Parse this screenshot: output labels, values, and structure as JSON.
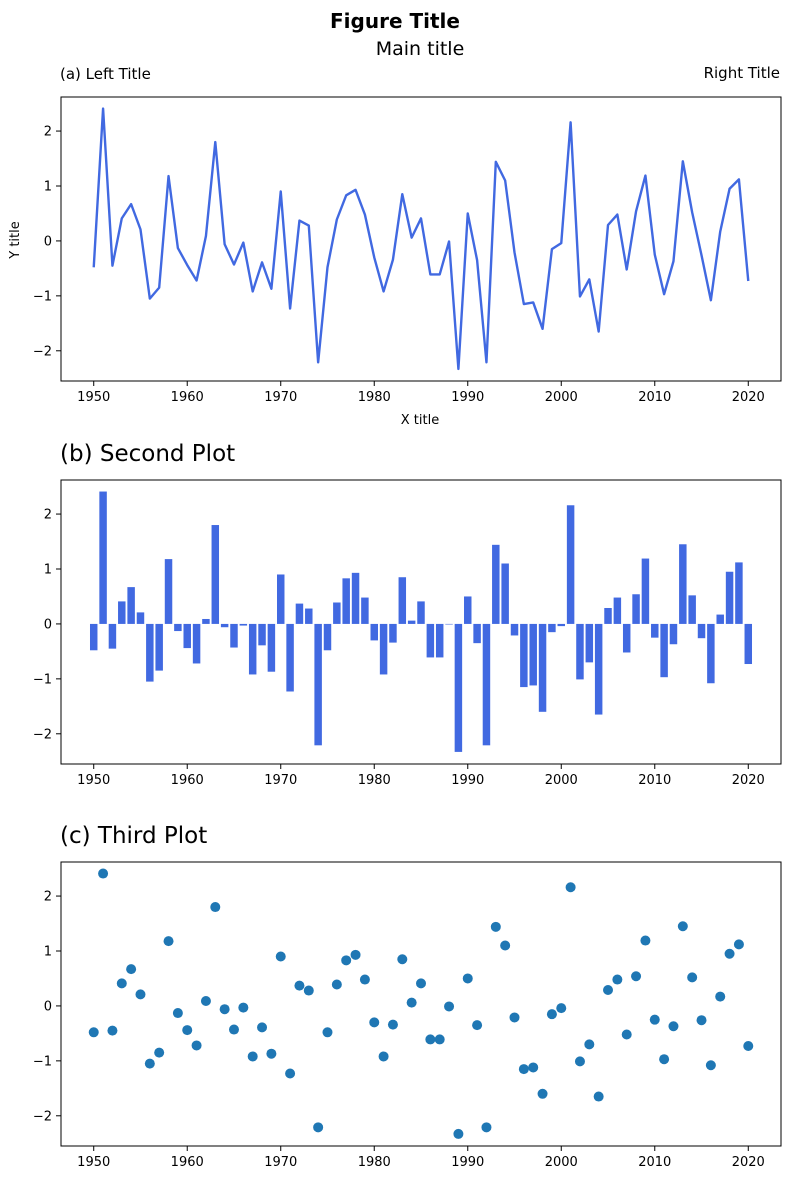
{
  "figure_title": "Figure Title",
  "colors": {
    "line": "#4169e1",
    "bar": "#4169e1",
    "scatter": "#1f77b4"
  },
  "chart_data": [
    {
      "type": "line",
      "title_center": "Main title",
      "title_left": "(a) Left Title",
      "title_right": "Right Title",
      "xlabel": "X title",
      "ylabel": "Y title",
      "xlim": [
        1946.5,
        2023.5
      ],
      "ylim": [
        -2.55,
        2.62
      ],
      "xticks": [
        1950,
        1960,
        1970,
        1980,
        1990,
        2000,
        2010,
        2020
      ],
      "yticks": [
        -2,
        -1,
        0,
        1,
        2
      ],
      "x": [
        1950,
        1951,
        1952,
        1953,
        1954,
        1955,
        1956,
        1957,
        1958,
        1959,
        1960,
        1961,
        1962,
        1963,
        1964,
        1965,
        1966,
        1967,
        1968,
        1969,
        1970,
        1971,
        1972,
        1973,
        1974,
        1975,
        1976,
        1977,
        1978,
        1979,
        1980,
        1981,
        1982,
        1983,
        1984,
        1985,
        1986,
        1987,
        1988,
        1989,
        1990,
        1991,
        1992,
        1993,
        1994,
        1995,
        1996,
        1997,
        1998,
        1999,
        2000,
        2001,
        2002,
        2003,
        2004,
        2005,
        2006,
        2007,
        2008,
        2009,
        2010,
        2011,
        2012,
        2013,
        2014,
        2015,
        2016,
        2017,
        2018,
        2019,
        2020
      ],
      "values": [
        -0.48,
        2.41,
        -0.45,
        0.41,
        0.67,
        0.21,
        -1.05,
        -0.85,
        1.18,
        -0.13,
        -0.44,
        -0.72,
        0.09,
        1.8,
        -0.06,
        -0.43,
        -0.03,
        -0.92,
        -0.39,
        -0.87,
        0.9,
        -1.23,
        0.37,
        0.28,
        -2.21,
        -0.48,
        0.39,
        0.83,
        0.93,
        0.48,
        -0.3,
        -0.92,
        -0.34,
        0.85,
        0.06,
        0.41,
        -0.61,
        -0.61,
        -0.01,
        -2.33,
        0.5,
        -0.35,
        -2.21,
        1.44,
        1.1,
        -0.21,
        -1.15,
        -1.12,
        -1.6,
        -0.15,
        -0.04,
        2.16,
        -1.01,
        -0.7,
        -1.65,
        0.29,
        0.48,
        -0.52,
        0.54,
        1.19,
        -0.25,
        -0.97,
        -0.37,
        1.45,
        0.52,
        -0.26,
        -1.08,
        0.17,
        0.95,
        1.12,
        -0.73
      ]
    },
    {
      "type": "bar",
      "title_left": "(b) Second Plot",
      "xlim": [
        1946.5,
        2023.5
      ],
      "ylim": [
        -2.55,
        2.62
      ],
      "xticks": [
        1950,
        1960,
        1970,
        1980,
        1990,
        2000,
        2010,
        2020
      ],
      "yticks": [
        -2,
        -1,
        0,
        1,
        2
      ],
      "x": [
        1950,
        1951,
        1952,
        1953,
        1954,
        1955,
        1956,
        1957,
        1958,
        1959,
        1960,
        1961,
        1962,
        1963,
        1964,
        1965,
        1966,
        1967,
        1968,
        1969,
        1970,
        1971,
        1972,
        1973,
        1974,
        1975,
        1976,
        1977,
        1978,
        1979,
        1980,
        1981,
        1982,
        1983,
        1984,
        1985,
        1986,
        1987,
        1988,
        1989,
        1990,
        1991,
        1992,
        1993,
        1994,
        1995,
        1996,
        1997,
        1998,
        1999,
        2000,
        2001,
        2002,
        2003,
        2004,
        2005,
        2006,
        2007,
        2008,
        2009,
        2010,
        2011,
        2012,
        2013,
        2014,
        2015,
        2016,
        2017,
        2018,
        2019,
        2020
      ],
      "values": [
        -0.48,
        2.41,
        -0.45,
        0.41,
        0.67,
        0.21,
        -1.05,
        -0.85,
        1.18,
        -0.13,
        -0.44,
        -0.72,
        0.09,
        1.8,
        -0.06,
        -0.43,
        -0.03,
        -0.92,
        -0.39,
        -0.87,
        0.9,
        -1.23,
        0.37,
        0.28,
        -2.21,
        -0.48,
        0.39,
        0.83,
        0.93,
        0.48,
        -0.3,
        -0.92,
        -0.34,
        0.85,
        0.06,
        0.41,
        -0.61,
        -0.61,
        -0.01,
        -2.33,
        0.5,
        -0.35,
        -2.21,
        1.44,
        1.1,
        -0.21,
        -1.15,
        -1.12,
        -1.6,
        -0.15,
        -0.04,
        2.16,
        -1.01,
        -0.7,
        -1.65,
        0.29,
        0.48,
        -0.52,
        0.54,
        1.19,
        -0.25,
        -0.97,
        -0.37,
        1.45,
        0.52,
        -0.26,
        -1.08,
        0.17,
        0.95,
        1.12,
        -0.73
      ]
    },
    {
      "type": "scatter",
      "title_left": "(c) Third Plot",
      "xlim": [
        1946.5,
        2023.5
      ],
      "ylim": [
        -2.55,
        2.62
      ],
      "xticks": [
        1950,
        1960,
        1970,
        1980,
        1990,
        2000,
        2010,
        2020
      ],
      "yticks": [
        -2,
        -1,
        0,
        1,
        2
      ],
      "x": [
        1950,
        1951,
        1952,
        1953,
        1954,
        1955,
        1956,
        1957,
        1958,
        1959,
        1960,
        1961,
        1962,
        1963,
        1964,
        1965,
        1966,
        1967,
        1968,
        1969,
        1970,
        1971,
        1972,
        1973,
        1974,
        1975,
        1976,
        1977,
        1978,
        1979,
        1980,
        1981,
        1982,
        1983,
        1984,
        1985,
        1986,
        1987,
        1988,
        1989,
        1990,
        1991,
        1992,
        1993,
        1994,
        1995,
        1996,
        1997,
        1998,
        1999,
        2000,
        2001,
        2002,
        2003,
        2004,
        2005,
        2006,
        2007,
        2008,
        2009,
        2010,
        2011,
        2012,
        2013,
        2014,
        2015,
        2016,
        2017,
        2018,
        2019,
        2020
      ],
      "values": [
        -0.48,
        2.41,
        -0.45,
        0.41,
        0.67,
        0.21,
        -1.05,
        -0.85,
        1.18,
        -0.13,
        -0.44,
        -0.72,
        0.09,
        1.8,
        -0.06,
        -0.43,
        -0.03,
        -0.92,
        -0.39,
        -0.87,
        0.9,
        -1.23,
        0.37,
        0.28,
        -2.21,
        -0.48,
        0.39,
        0.83,
        0.93,
        0.48,
        -0.3,
        -0.92,
        -0.34,
        0.85,
        0.06,
        0.41,
        -0.61,
        -0.61,
        -0.01,
        -2.33,
        0.5,
        -0.35,
        -2.21,
        1.44,
        1.1,
        -0.21,
        -1.15,
        -1.12,
        -1.6,
        -0.15,
        -0.04,
        2.16,
        -1.01,
        -0.7,
        -1.65,
        0.29,
        0.48,
        -0.52,
        0.54,
        1.19,
        -0.25,
        -0.97,
        -0.37,
        1.45,
        0.52,
        -0.26,
        -1.08,
        0.17,
        0.95,
        1.12,
        -0.73
      ]
    }
  ]
}
